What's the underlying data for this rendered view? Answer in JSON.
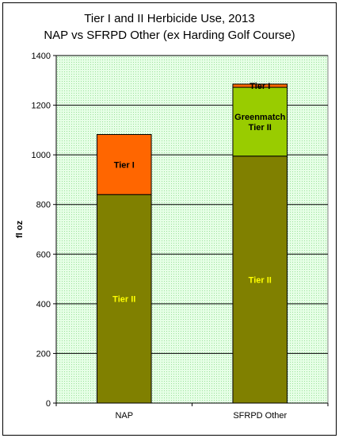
{
  "chart_data": {
    "type": "bar",
    "stacked": true,
    "title_line1": "Tier I and II Herbicide Use, 2013",
    "title_line2": "NAP vs SFRPD Other (ex Harding Golf Course)",
    "xlabel": "",
    "ylabel": "fl oz",
    "ylim": [
      0,
      1400
    ],
    "yticks": [
      0,
      200,
      400,
      600,
      800,
      1000,
      1200,
      1400
    ],
    "grid": true,
    "plot_background": "#ccffcc",
    "categories": [
      "NAP",
      "SFRPD Other"
    ],
    "series": [
      {
        "name": "Tier II",
        "color": "#808000",
        "label_color": "#ffff00",
        "values": [
          840,
          995
        ]
      },
      {
        "name": "Greenmatch Tier II",
        "color": "#99cc00",
        "label_color": "#000000",
        "values": [
          0,
          277
        ]
      },
      {
        "name": "Tier I",
        "color": "#ff6600",
        "label_color": "#000000",
        "values": [
          242,
          13
        ]
      }
    ],
    "segment_labels": [
      {
        "category": "NAP",
        "series": "Tier II",
        "lines": [
          "Tier II"
        ]
      },
      {
        "category": "NAP",
        "series": "Tier I",
        "lines": [
          "Tier I"
        ]
      },
      {
        "category": "SFRPD Other",
        "series": "Tier II",
        "lines": [
          "Tier II"
        ]
      },
      {
        "category": "SFRPD Other",
        "series": "Greenmatch Tier II",
        "lines": [
          "Greenmatch",
          "Tier II"
        ]
      },
      {
        "category": "SFRPD Other",
        "series": "Tier I",
        "lines": [
          "Tier I"
        ]
      }
    ]
  }
}
